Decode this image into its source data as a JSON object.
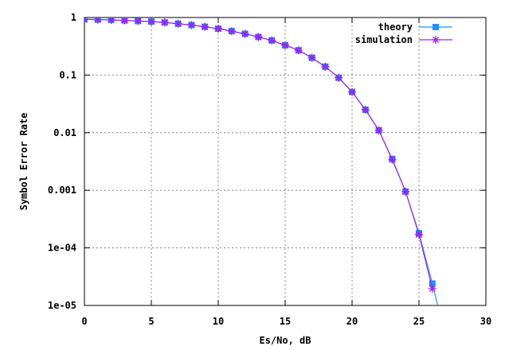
{
  "chart_data": {
    "type": "line",
    "xlabel": "Es/No, dB",
    "ylabel": "Symbol Error Rate",
    "xlim": [
      0,
      30
    ],
    "ylim": [
      1e-05,
      1
    ],
    "y_scale": "log",
    "grid": true,
    "legend_position": "top-right",
    "x_ticks": [
      "0",
      "5",
      "10",
      "15",
      "20",
      "25",
      "30"
    ],
    "y_ticks": [
      {
        "value": 1,
        "label": "1"
      },
      {
        "value": 0.1,
        "label": "0.1"
      },
      {
        "value": 0.01,
        "label": "0.01"
      },
      {
        "value": 0.001,
        "label": "0.001"
      },
      {
        "value": 0.0001,
        "label": "1e-04"
      },
      {
        "value": 1e-05,
        "label": "1e-05"
      }
    ],
    "series": [
      {
        "name": "theory",
        "color": "#1e90ff",
        "marker": "square",
        "x": [
          0,
          1,
          2,
          3,
          4,
          5,
          6,
          7,
          8,
          9,
          10,
          11,
          12,
          13,
          14,
          15,
          16,
          17,
          18,
          19,
          20,
          21,
          22,
          23,
          24,
          25,
          26,
          26.4
        ],
        "y": [
          0.93,
          0.92,
          0.91,
          0.89,
          0.87,
          0.85,
          0.82,
          0.78,
          0.74,
          0.69,
          0.64,
          0.58,
          0.52,
          0.46,
          0.4,
          0.33,
          0.27,
          0.2,
          0.14,
          0.09,
          0.051,
          0.025,
          0.011,
          0.0035,
          0.00095,
          0.00018,
          2.4e-05,
          1e-05
        ]
      },
      {
        "name": "simulation",
        "color": "#a020f0",
        "marker": "star",
        "x": [
          0,
          1,
          2,
          3,
          4,
          5,
          6,
          7,
          8,
          9,
          10,
          11,
          12,
          13,
          14,
          15,
          16,
          17,
          18,
          19,
          20,
          21,
          22,
          23,
          24,
          25,
          26
        ],
        "y": [
          0.93,
          0.92,
          0.91,
          0.89,
          0.87,
          0.85,
          0.82,
          0.78,
          0.74,
          0.69,
          0.64,
          0.58,
          0.52,
          0.46,
          0.4,
          0.33,
          0.27,
          0.2,
          0.14,
          0.09,
          0.051,
          0.025,
          0.011,
          0.0034,
          0.00095,
          0.00017,
          1.95e-05
        ]
      }
    ]
  }
}
